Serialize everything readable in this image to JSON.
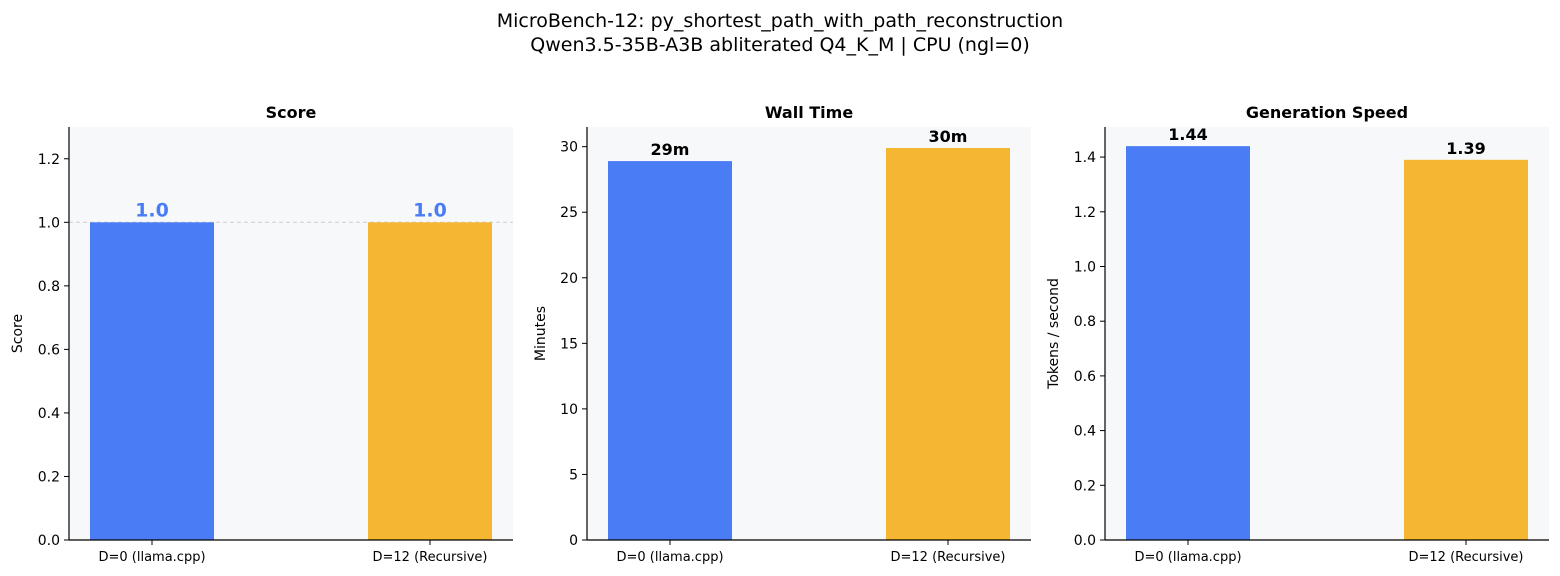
{
  "suptitle": {
    "line1": "MicroBench-12: py_shortest_path_with_path_reconstruction",
    "line2": "Qwen3.5-35B-A3B abliterated Q4_K_M | CPU (ngl=0)"
  },
  "colors": {
    "d0": "#4a7cf5",
    "d12": "#f5b632",
    "plot_bg": "#f7f8fa",
    "score_label": "#4a7cf5",
    "reference_line": "#cccccc"
  },
  "chart_data": [
    {
      "type": "bar",
      "title": "Score",
      "xlabel": "",
      "ylabel": "Score",
      "categories": [
        "D=0 (llama.cpp)",
        "D=12 (Recursive)"
      ],
      "values": [
        1.0,
        1.0
      ],
      "value_labels": [
        "1.0",
        "1.0"
      ],
      "ylim": [
        0,
        1.3
      ],
      "yticks": [
        0.0,
        0.2,
        0.4,
        0.6,
        0.8,
        1.0,
        1.2
      ],
      "ytick_labels": [
        "0.0",
        "0.2",
        "0.4",
        "0.6",
        "0.8",
        "1.0",
        "1.2"
      ],
      "reference_line": 1.0,
      "grid": false,
      "legend": "none"
    },
    {
      "type": "bar",
      "title": "Wall Time",
      "xlabel": "",
      "ylabel": "Minutes",
      "categories": [
        "D=0 (llama.cpp)",
        "D=12 (Recursive)"
      ],
      "values": [
        28.9,
        29.9
      ],
      "value_labels": [
        "29m",
        "30m"
      ],
      "ylim": [
        0,
        31.5
      ],
      "yticks": [
        0,
        5,
        10,
        15,
        20,
        25,
        30
      ],
      "ytick_labels": [
        "0",
        "5",
        "10",
        "15",
        "20",
        "25",
        "30"
      ],
      "grid": false,
      "legend": "none"
    },
    {
      "type": "bar",
      "title": "Generation Speed",
      "xlabel": "",
      "ylabel": "Tokens / second",
      "categories": [
        "D=0 (llama.cpp)",
        "D=12 (Recursive)"
      ],
      "values": [
        1.44,
        1.39
      ],
      "value_labels": [
        "1.44",
        "1.39"
      ],
      "ylim": [
        0,
        1.51
      ],
      "yticks": [
        0.0,
        0.2,
        0.4,
        0.6,
        0.8,
        1.0,
        1.2,
        1.4
      ],
      "ytick_labels": [
        "0.0",
        "0.2",
        "0.4",
        "0.6",
        "0.8",
        "1.0",
        "1.2",
        "1.4"
      ],
      "grid": false,
      "legend": "none"
    }
  ]
}
